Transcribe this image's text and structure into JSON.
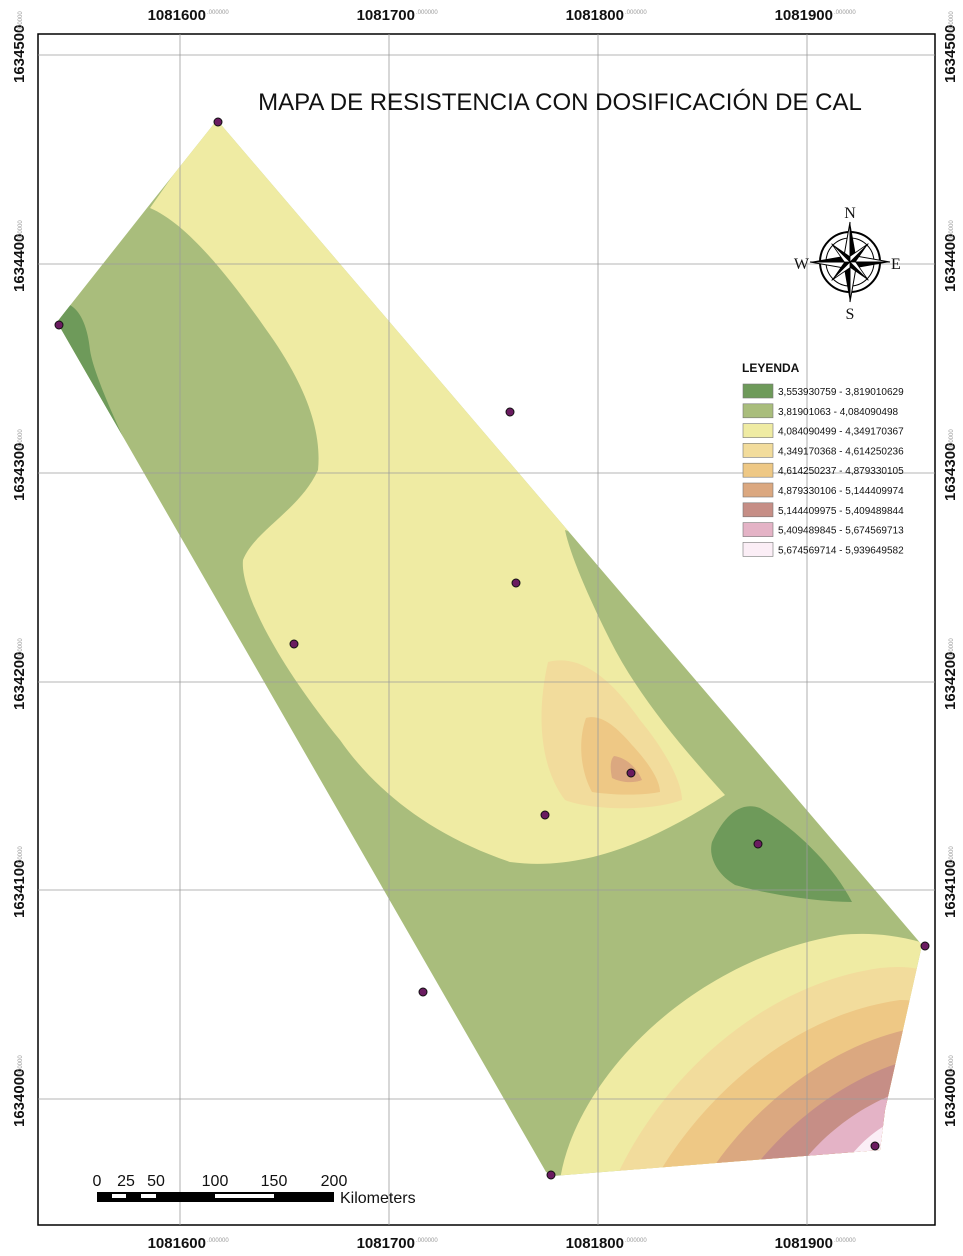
{
  "map": {
    "title": "MAPA DE  RESISTENCIA  CON DOSIFICACIÓN DE CAL",
    "x_ticks": [
      {
        "main": "1081600",
        "dec": ".000000"
      },
      {
        "main": "1081700",
        "dec": ".000000"
      },
      {
        "main": "1081800",
        "dec": ".000000"
      },
      {
        "main": "1081900",
        "dec": ".000000"
      }
    ],
    "y_ticks": [
      {
        "main": "1634500",
        "dec": ".000000"
      },
      {
        "main": "1634400",
        "dec": ".000000"
      },
      {
        "main": "1634300",
        "dec": ".000000"
      },
      {
        "main": "1634200",
        "dec": ".000000"
      },
      {
        "main": "1634100",
        "dec": ".000000"
      },
      {
        "main": "1634000",
        "dec": ".000000"
      }
    ],
    "compass": {
      "north": "N",
      "south": "S",
      "east": "E",
      "west": "W"
    },
    "legend": {
      "title": "LEYENDA",
      "items": [
        {
          "label": "3,553930759 - 3,819010629",
          "color": "#6e9a5a"
        },
        {
          "label": "3,81901063 - 4,084090498",
          "color": "#a9bd7c"
        },
        {
          "label": "4,084090499 - 4,349170367",
          "color": "#efeba3"
        },
        {
          "label": "4,349170368 - 4,614250236",
          "color": "#f2dc9c"
        },
        {
          "label": "4,614250237 - 4,879330105",
          "color": "#eec885"
        },
        {
          "label": "4,879330106 - 5,144409974",
          "color": "#dba880"
        },
        {
          "label": "5,144409975 - 5,409489844",
          "color": "#c68e86"
        },
        {
          "label": "5,409489845 - 5,674569713",
          "color": "#e4b3c6"
        },
        {
          "label": "5,674569714 - 5,939649582",
          "color": "#fbeef6"
        }
      ]
    },
    "scale_bar": {
      "labels": [
        "0",
        "25",
        "50",
        "100",
        "150",
        "200"
      ],
      "unit": "Kilometers"
    },
    "sample_point_color": "#6a1b60"
  }
}
